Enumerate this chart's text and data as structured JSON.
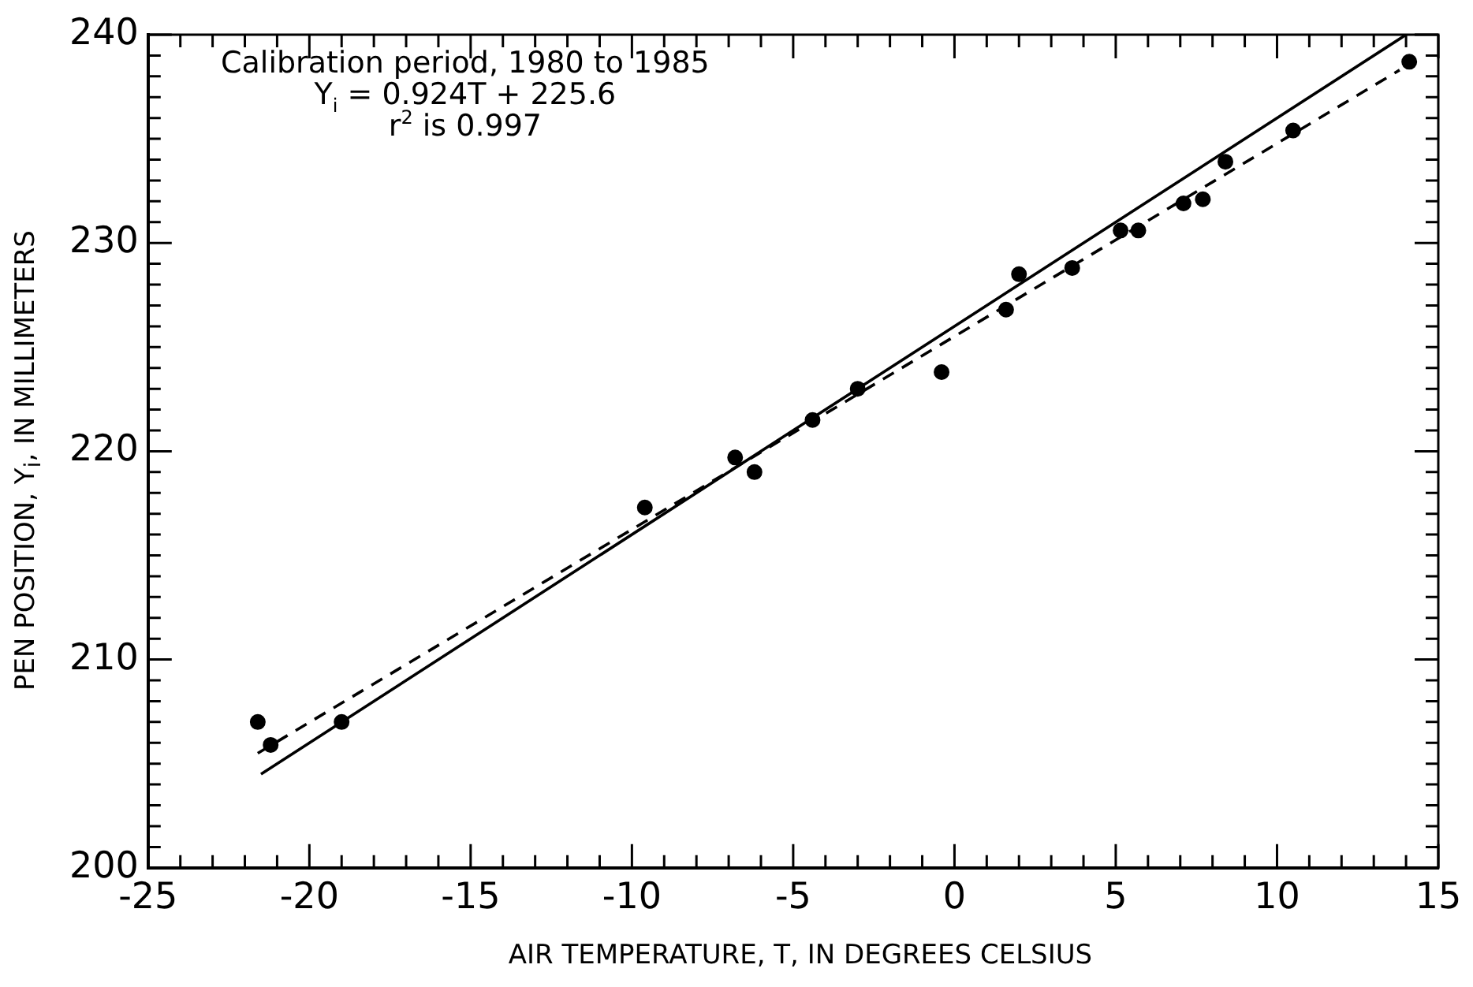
{
  "chart_data": {
    "type": "scatter",
    "xlabel": "AIR TEMPERATURE, T, IN DEGREES CELSIUS",
    "ylabel": "PEN POSITION, Y$_{i}$, IN MILLIMETERS",
    "annotations": [
      "Calibration period, 1980 to 1985",
      "Y$_{i}$ = 0.924T + 225.6",
      "r$^{2}$ is 0.997"
    ],
    "xlim": [
      -25,
      15
    ],
    "ylim": [
      200,
      240
    ],
    "xticks": [
      -25,
      {
        "value": -24,
        "label": null
      },
      {
        "value": -23,
        "label": null
      },
      {
        "value": -22,
        "label": null
      },
      {
        "value": -21,
        "label": null
      },
      -20,
      {
        "value": -19,
        "label": null
      },
      {
        "value": -18,
        "label": null
      },
      {
        "value": -17,
        "label": null
      },
      {
        "value": -16,
        "label": null
      },
      -15,
      {
        "value": -14,
        "label": null
      },
      {
        "value": -13,
        "label": null
      },
      {
        "value": -12,
        "label": null
      },
      {
        "value": -11,
        "label": null
      },
      -10,
      {
        "value": -9,
        "label": null
      },
      {
        "value": -8,
        "label": null
      },
      {
        "value": -7,
        "label": null
      },
      {
        "value": -6,
        "label": null
      },
      -5,
      {
        "value": -4,
        "label": null
      },
      {
        "value": -3,
        "label": null
      },
      {
        "value": -2,
        "label": null
      },
      {
        "value": -1,
        "label": null
      },
      0,
      {
        "value": 1,
        "label": null
      },
      {
        "value": 2,
        "label": null
      },
      {
        "value": 3,
        "label": null
      },
      {
        "value": 4,
        "label": null
      },
      5,
      {
        "value": 6,
        "label": null
      },
      {
        "value": 7,
        "label": null
      },
      {
        "value": 8,
        "label": null
      },
      {
        "value": 9,
        "label": null
      },
      10,
      {
        "value": 11,
        "label": null
      },
      {
        "value": 12,
        "label": null
      },
      {
        "value": 13,
        "label": null
      },
      {
        "value": 14,
        "label": null
      },
      15
    ],
    "yticks": [
      200,
      {
        "value": 201,
        "label": null
      },
      {
        "value": 202,
        "label": null
      },
      {
        "value": 203,
        "label": null
      },
      {
        "value": 204,
        "label": null
      },
      {
        "value": 205,
        "label": null
      },
      {
        "value": 206,
        "label": null
      },
      {
        "value": 207,
        "label": null
      },
      {
        "value": 208,
        "label": null
      },
      {
        "value": 209,
        "label": null
      },
      210,
      {
        "value": 211,
        "label": null
      },
      {
        "value": 212,
        "label": null
      },
      {
        "value": 213,
        "label": null
      },
      {
        "value": 214,
        "label": null
      },
      {
        "value": 215,
        "label": null
      },
      {
        "value": 216,
        "label": null
      },
      {
        "value": 217,
        "label": null
      },
      {
        "value": 218,
        "label": null
      },
      {
        "value": 219,
        "label": null
      },
      220,
      {
        "value": 221,
        "label": null
      },
      {
        "value": 222,
        "label": null
      },
      {
        "value": 223,
        "label": null
      },
      {
        "value": 224,
        "label": null
      },
      {
        "value": 225,
        "label": null
      },
      {
        "value": 226,
        "label": null
      },
      {
        "value": 227,
        "label": null
      },
      {
        "value": 228,
        "label": null
      },
      {
        "value": 229,
        "label": null
      },
      230,
      {
        "value": 231,
        "label": null
      },
      {
        "value": 232,
        "label": null
      },
      {
        "value": 233,
        "label": null
      },
      {
        "value": 234,
        "label": null
      },
      {
        "value": 235,
        "label": null
      },
      {
        "value": 236,
        "label": null
      },
      {
        "value": 237,
        "label": null
      },
      {
        "value": 238,
        "label": null
      },
      {
        "value": 239,
        "label": null
      },
      240
    ],
    "grid": false,
    "legend": false,
    "marker": "circle",
    "series": [
      {
        "type": "scatter",
        "color": "#000000",
        "x": [
          -21.6,
          -21.2,
          -19.0,
          -9.6,
          -6.8,
          -6.2,
          -4.4,
          -3.0,
          -0.4,
          1.6,
          2.0,
          3.65,
          5.15,
          5.7,
          7.1,
          7.7,
          8.4,
          10.5,
          14.1
        ],
        "values": [
          207.0,
          205.9,
          207.0,
          217.3,
          219.7,
          219.0,
          221.5,
          223.0,
          223.8,
          226.8,
          228.5,
          228.8,
          230.6,
          230.6,
          231.9,
          232.1,
          233.9,
          235.4,
          238.7
        ]
      },
      {
        "type": "line",
        "color": "#000000",
        "line_style": "solid",
        "marker": "none",
        "x": [
          -21.5,
          14.0
        ],
        "values": [
          204.5,
          240.0
        ]
      },
      {
        "type": "line",
        "color": "#000000",
        "line_style": "dashed",
        "marker": "none",
        "x": [
          -21.6,
          13.8
        ],
        "values": [
          205.5,
          238.3
        ]
      }
    ]
  }
}
